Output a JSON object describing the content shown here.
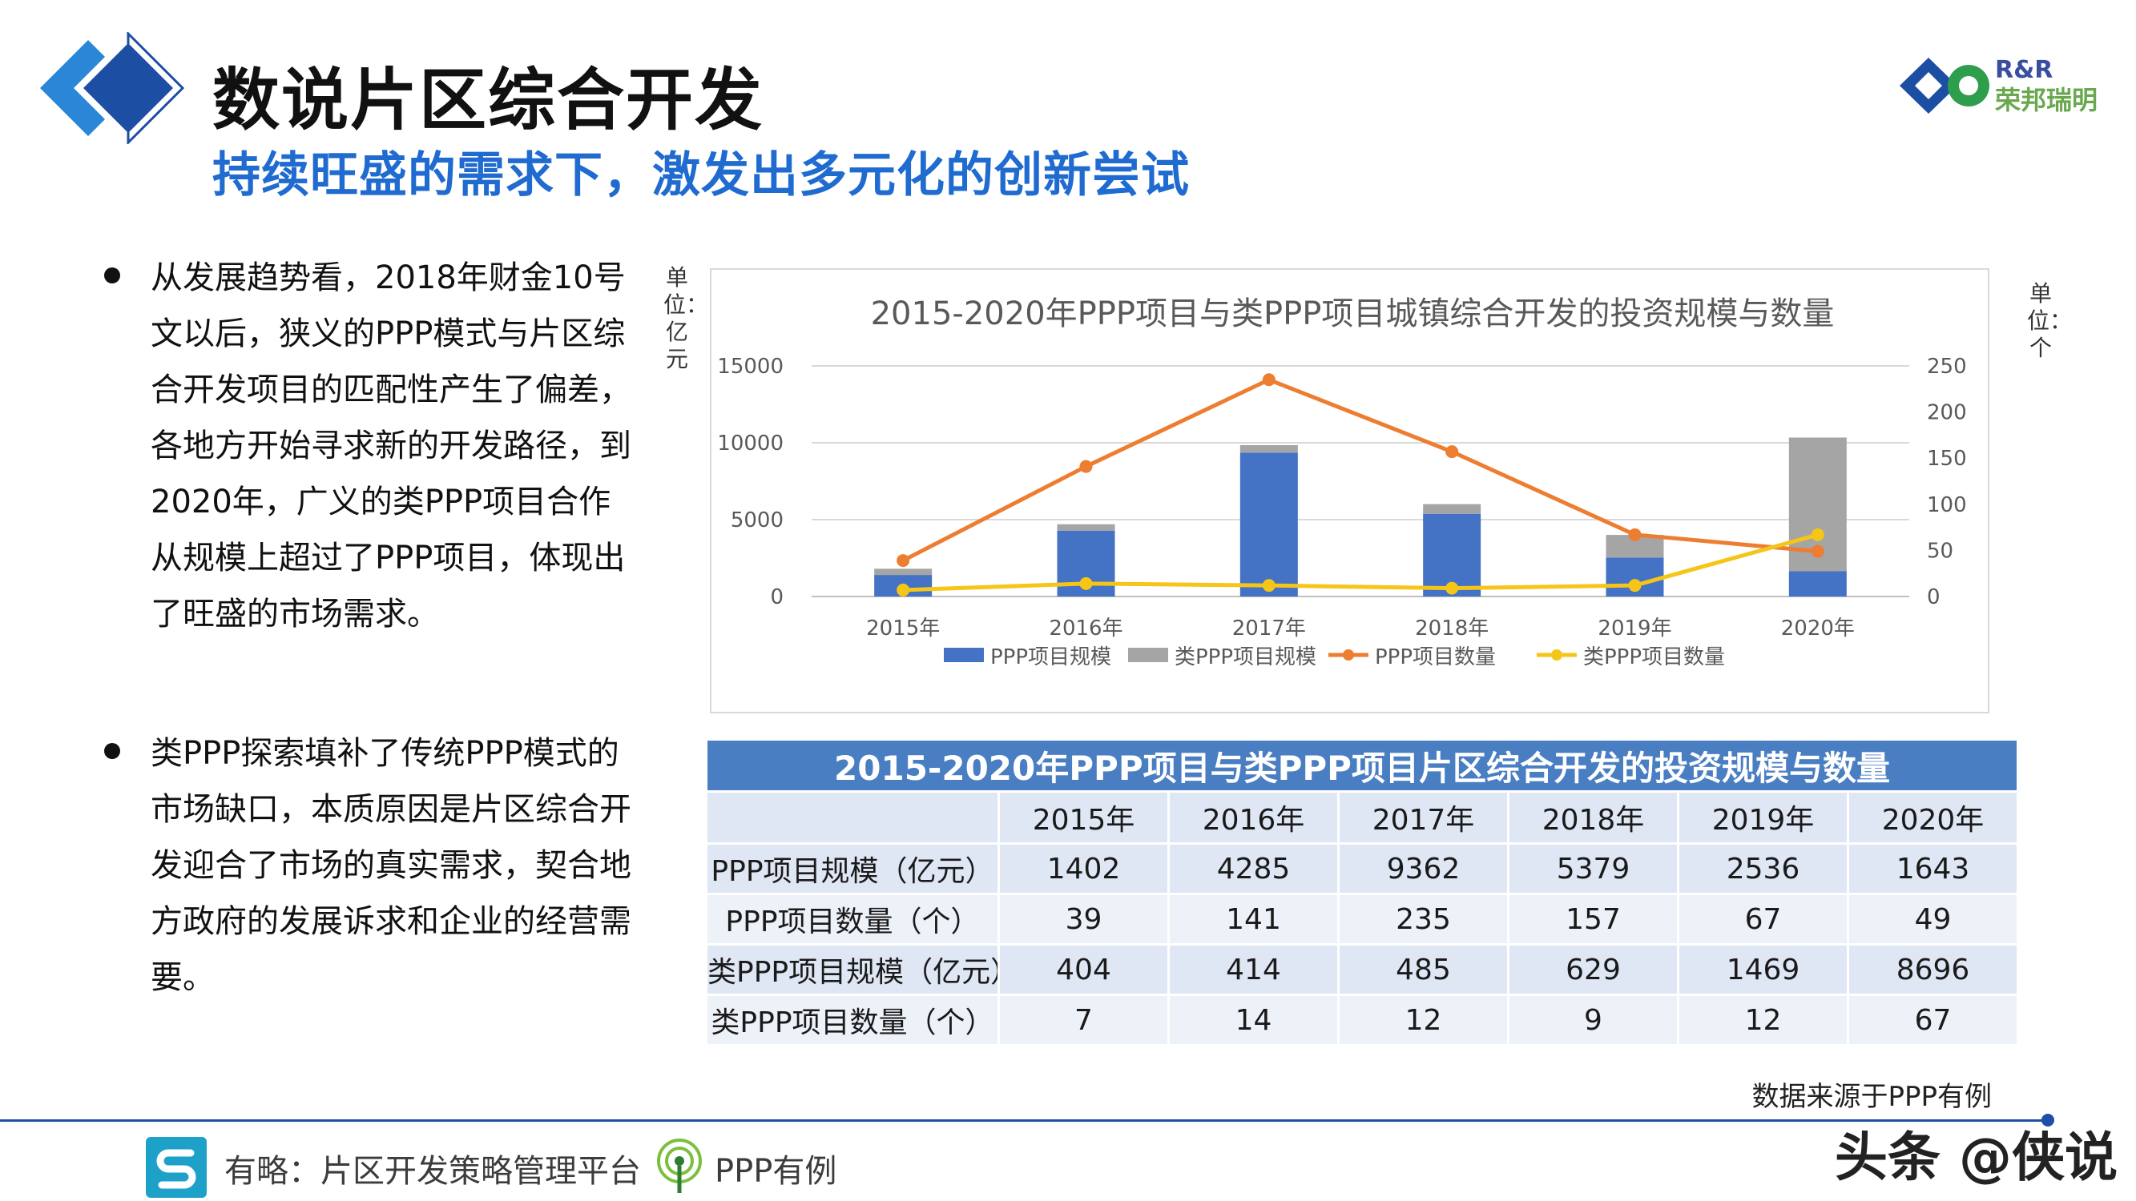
{
  "header": {
    "title": "数说片区综合开发",
    "subtitle": "持续旺盛的需求下，激发出多元化的创新尝试",
    "brand_line1": "R&R",
    "brand_line2": "荣邦瑞明"
  },
  "bullets": [
    {
      "text": "从发展趋势看，2018年财金10号文以后，狭义的PPP模式与片区综合开发项目的匹配性产生了偏差，各地方开始寻求新的开发路径，到2020年，广义的类PPP项目合作从规模上超过了PPP项目，体现出了旺盛的市场需求。"
    },
    {
      "text": "类PPP探索填补了传统PPP模式的市场缺口，本质原因是片区综合开发迎合了市场的真实需求，契合地方政府的发展诉求和企业的经营需要。"
    }
  ],
  "chart_units": {
    "left": "单位：亿元",
    "right": "单位：个"
  },
  "chart_data": {
    "type": "bar",
    "title": "2015-2020年PPP项目与类PPP项目城镇综合开发的投资规模与数量",
    "categories": [
      "2015年",
      "2016年",
      "2017年",
      "2018年",
      "2019年",
      "2020年"
    ],
    "series": [
      {
        "name": "PPP项目规模",
        "kind": "stacked-bar",
        "axis": "left",
        "color": "#4472c4",
        "values": [
          1402,
          4285,
          9362,
          5379,
          2536,
          1643
        ]
      },
      {
        "name": "类PPP项目规模",
        "kind": "stacked-bar",
        "axis": "left",
        "color": "#a5a5a5",
        "values": [
          404,
          414,
          485,
          629,
          1469,
          8696
        ]
      },
      {
        "name": "PPP项目数量",
        "kind": "line",
        "axis": "right",
        "color": "#ed7d31",
        "values": [
          39,
          141,
          235,
          157,
          67,
          49
        ]
      },
      {
        "name": "类PPP项目数量",
        "kind": "line",
        "axis": "right",
        "color": "#f5c518",
        "values": [
          7,
          14,
          12,
          9,
          12,
          67
        ]
      }
    ],
    "y_left": {
      "ticks": [
        0,
        5000,
        10000,
        15000
      ],
      "ylim": [
        0,
        15000
      ]
    },
    "y_right": {
      "ticks": [
        0,
        50,
        100,
        150,
        200,
        250
      ],
      "ylim": [
        0,
        250
      ]
    },
    "grid": true,
    "legend": "bottom"
  },
  "table": {
    "title": "2015-2020年PPP项目与类PPP项目片区综合开发的投资规模与数量",
    "columns": [
      "",
      "2015年",
      "2016年",
      "2017年",
      "2018年",
      "2019年",
      "2020年"
    ],
    "rows": [
      [
        "PPP项目规模（亿元）",
        "1402",
        "4285",
        "9362",
        "5379",
        "2536",
        "1643"
      ],
      [
        "PPP项目数量（个）",
        "39",
        "141",
        "235",
        "157",
        "67",
        "49"
      ],
      [
        "类PPP项目规模（亿元）",
        "404",
        "414",
        "485",
        "629",
        "1469",
        "8696"
      ],
      [
        "类PPP项目数量（个）",
        "7",
        "14",
        "12",
        "9",
        "12",
        "67"
      ]
    ]
  },
  "source_note": "数据来源于PPP有例",
  "footer": {
    "platform": "有略：片区开发策略管理平台",
    "case": "PPP有例",
    "watermark": "头条 @侠说"
  },
  "colors": {
    "accent_blue": "#1f6bd0",
    "table_header": "#4a7ec3",
    "footer_line": "#1f4fa6"
  }
}
